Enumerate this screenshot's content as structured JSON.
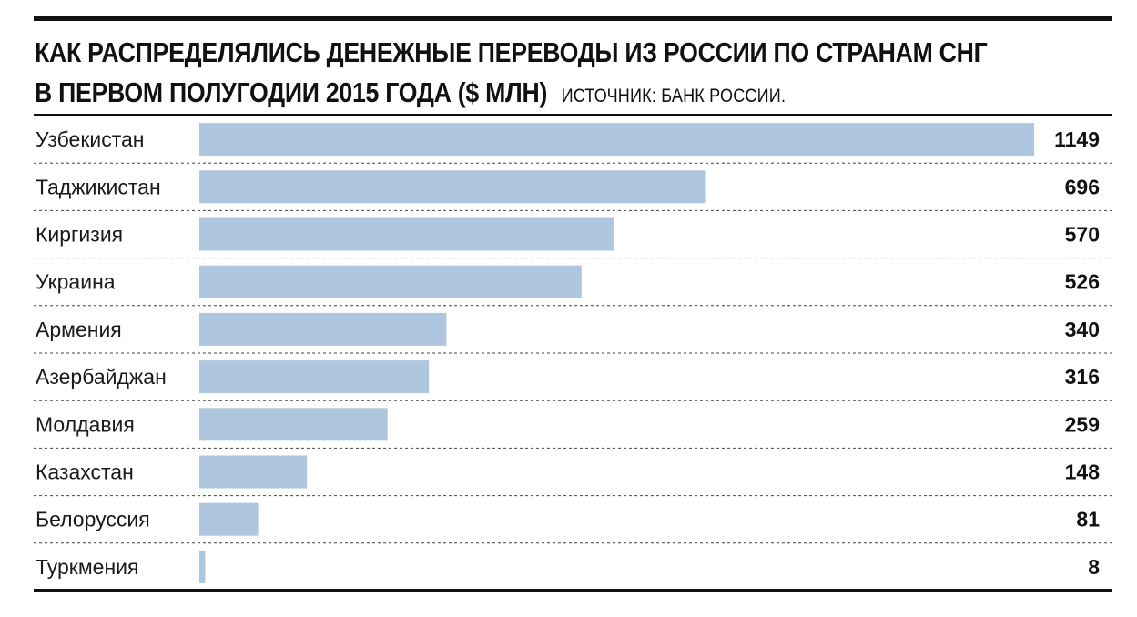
{
  "title_line1": "КАК РАСПРЕДЕЛЯЛИСЬ ДЕНЕЖНЫЕ ПЕРЕВОДЫ ИЗ РОССИИ ПО СТРАНАМ СНГ",
  "title_line2": "В ПЕРВОМ ПОЛУГОДИИ 2015 ГОДА ($ МЛН)",
  "source": "ИСТОЧНИК: БАНК РОССИИ.",
  "colors": {
    "bar": "#aec6de",
    "rule": "#111111"
  },
  "chart_data": {
    "type": "bar",
    "orientation": "horizontal",
    "title": "КАК РАСПРЕДЕЛЯЛИСЬ ДЕНЕЖНЫЕ ПЕРЕВОДЫ ИЗ РОССИИ ПО СТРАНАМ СНГ В ПЕРВОМ ПОЛУГОДИИ 2015 ГОДА ($ МЛН)",
    "categories": [
      "Узбекистан",
      "Таджикистан",
      "Киргизия",
      "Украина",
      "Армения",
      "Азербайджан",
      "Молдавия",
      "Казахстан",
      "Белоруссия",
      "Туркмения"
    ],
    "values": [
      1149,
      696,
      570,
      526,
      340,
      316,
      259,
      148,
      81,
      8
    ],
    "value_labels": [
      "1149",
      "696",
      "570",
      "526",
      "340",
      "316",
      "259",
      "148",
      "81",
      "8"
    ],
    "xlim": [
      0,
      1149
    ],
    "grid": false,
    "legend": "none"
  }
}
